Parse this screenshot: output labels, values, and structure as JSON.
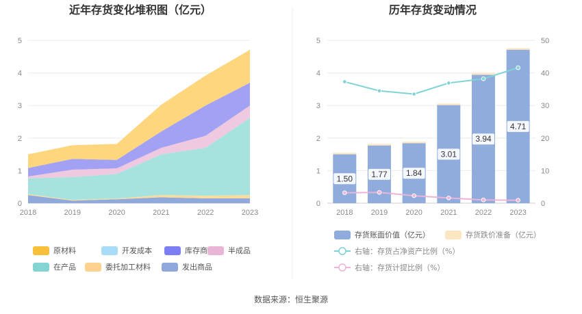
{
  "source": "数据来源：恒生聚源",
  "chart_data": [
    {
      "type": "area",
      "title": "近年存货变化堆积图（亿元）",
      "stacked": true,
      "x": [
        "2018",
        "2019",
        "2020",
        "2021",
        "2022",
        "2023"
      ],
      "yticks": [
        "0",
        "1",
        "2",
        "3",
        "4",
        "5"
      ],
      "ylim": [
        0,
        5
      ],
      "series": [
        {
          "name": "发出商品",
          "color": "#8FA9DC",
          "values": [
            0.25,
            0.08,
            0.12,
            0.18,
            0.15,
            0.15
          ]
        },
        {
          "name": "委托加工材料",
          "color": "#FDDB9B",
          "values": [
            0.03,
            0.02,
            0.02,
            0.07,
            0.08,
            0.1
          ]
        },
        {
          "name": "在产品",
          "color": "#A6E3DF",
          "values": [
            0.48,
            0.7,
            0.76,
            1.25,
            1.47,
            2.37
          ]
        },
        {
          "name": "半成品",
          "color": "#EEC9E0",
          "values": [
            0.06,
            0.23,
            0.17,
            0.2,
            0.37,
            0.38
          ]
        },
        {
          "name": "库存商品",
          "color": "#A3A1F4",
          "values": [
            0.26,
            0.33,
            0.26,
            0.5,
            0.93,
            0.7
          ]
        },
        {
          "name": "开发成本",
          "color": "#A7DDF6",
          "values": [
            0,
            0,
            0,
            0,
            0,
            0
          ]
        },
        {
          "name": "原材料",
          "color": "#FDD67E",
          "values": [
            0.42,
            0.42,
            0.49,
            0.82,
            0.92,
            1.01
          ]
        }
      ],
      "legend_order": [
        "原材料",
        "开发成本",
        "库存商品",
        "半成品",
        "在产品",
        "委托加工材料",
        "发出商品"
      ],
      "legend_colors": {
        "原材料": "#F8BF3A",
        "开发成本": "#A7DDF6",
        "库存商品": "#7C7EF3",
        "半成品": "#E8B5D7",
        "在产品": "#82D5D2",
        "委托加工材料": "#FDD28E",
        "发出商品": "#8FA9DC"
      },
      "legend_placement": "bottom",
      "grid": true
    },
    {
      "type": "bar",
      "title": "历年存货变动情况",
      "categories": [
        "2018",
        "2019",
        "2020",
        "2021",
        "2022",
        "2023"
      ],
      "yticks_left": [
        "0",
        "1",
        "2",
        "3",
        "4",
        "5"
      ],
      "yticks_right": [
        "0",
        "10",
        "20",
        "30",
        "40",
        "50"
      ],
      "ylim_left": [
        0,
        5
      ],
      "ylim_right": [
        0,
        50
      ],
      "series": [
        {
          "name": "存货账面价值（亿元）",
          "axis": "left",
          "kind": "bar",
          "color": "#8FACDC",
          "values": [
            1.5,
            1.77,
            1.84,
            3.01,
            3.94,
            4.71
          ],
          "labels": [
            "1.50",
            "1.77",
            "1.84",
            "3.01",
            "3.94",
            "4.71"
          ]
        },
        {
          "name": "存货跌价准备（亿元）",
          "axis": "left",
          "kind": "bar-stack",
          "color": "#FCE7C3",
          "values": [
            0.05,
            0.05,
            0.05,
            0.05,
            0.05,
            0.05
          ]
        },
        {
          "name": "右轴：存货占净资产比例（%）",
          "axis": "right",
          "kind": "line",
          "color": "#7ED3D6",
          "values": [
            37.3,
            34.5,
            33.5,
            36.9,
            38.2,
            41.6
          ]
        },
        {
          "name": "右轴：存货计提比例（%）",
          "axis": "right",
          "kind": "line",
          "color": "#EBB4D8",
          "values": [
            3.2,
            3.3,
            2.3,
            1.6,
            1.0,
            0.9
          ]
        }
      ],
      "legend_placement": "bottom",
      "grid": true
    }
  ]
}
